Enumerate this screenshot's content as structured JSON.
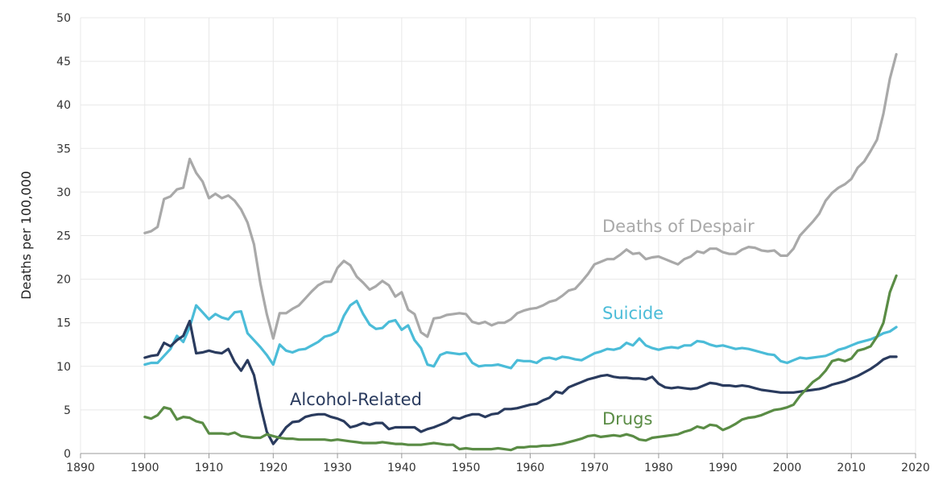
{
  "chart_data": {
    "type": "line",
    "title": "",
    "xlabel": "",
    "ylabel": "Deaths per 100,000",
    "xlim": [
      1890,
      2020
    ],
    "ylim": [
      0,
      50
    ],
    "xticks": [
      1890,
      1900,
      1910,
      1920,
      1930,
      1940,
      1950,
      1960,
      1970,
      1980,
      1990,
      2000,
      2010,
      2020
    ],
    "yticks": [
      0,
      5,
      10,
      15,
      20,
      25,
      30,
      35,
      40,
      45,
      50
    ],
    "grid": true,
    "legend": "inline labels",
    "x_start": 1900,
    "series": [
      {
        "name": "Deaths of Despair",
        "color": "#a9a9a9",
        "values": [
          25.3,
          25.5,
          26,
          29.2,
          29.5,
          30.3,
          30.5,
          33.8,
          32.2,
          31.2,
          29.3,
          29.8,
          29.3,
          29.6,
          29,
          28,
          26.5,
          24,
          19.5,
          16,
          13.2,
          16.1,
          16.1,
          16.6,
          17,
          17.8,
          18.6,
          19.3,
          19.7,
          19.7,
          21.3,
          22.1,
          21.6,
          20.3,
          19.6,
          18.8,
          19.2,
          19.8,
          19.3,
          18,
          18.5,
          16.5,
          16,
          13.9,
          13.4,
          15.5,
          15.6,
          15.9,
          16,
          16.1,
          16,
          15.1,
          14.9,
          15.1,
          14.7,
          15,
          15,
          15.4,
          16.1,
          16.4,
          16.6,
          16.7,
          17,
          17.4,
          17.6,
          18.1,
          18.7,
          18.9,
          19.7,
          20.6,
          21.7,
          22,
          22.3,
          22.3,
          22.8,
          23.4,
          22.9,
          23,
          22.3,
          22.5,
          22.6,
          22.3,
          22,
          21.7,
          22.3,
          22.6,
          23.2,
          23,
          23.5,
          23.5,
          23.1,
          22.9,
          22.9,
          23.4,
          23.7,
          23.6,
          23.3,
          23.2,
          23.3,
          22.7,
          22.7,
          23.5,
          25,
          25.8,
          26.6,
          27.5,
          29,
          29.9,
          30.5,
          30.9,
          31.5,
          32.8,
          33.5,
          34.7,
          36,
          39,
          43,
          45.8
        ]
      },
      {
        "name": "Suicide",
        "color": "#4bbcd8",
        "values": [
          10.2,
          10.4,
          10.4,
          11.2,
          12,
          13.5,
          12.8,
          14.5,
          17,
          16.2,
          15.4,
          16,
          15.6,
          15.4,
          16.2,
          16.3,
          13.8,
          13,
          12.2,
          11.3,
          10.2,
          12.5,
          11.8,
          11.6,
          11.9,
          12,
          12.4,
          12.8,
          13.4,
          13.6,
          14,
          15.8,
          17,
          17.5,
          16,
          14.8,
          14.3,
          14.4,
          15.1,
          15.3,
          14.2,
          14.7,
          13,
          12.1,
          10.2,
          10,
          11.3,
          11.6,
          11.5,
          11.4,
          11.5,
          10.4,
          10,
          10.1,
          10.1,
          10.2,
          10,
          9.8,
          10.7,
          10.6,
          10.6,
          10.4,
          10.9,
          11,
          10.8,
          11.1,
          11,
          10.8,
          10.7,
          11.1,
          11.5,
          11.7,
          12,
          11.9,
          12.1,
          12.7,
          12.4,
          13.2,
          12.4,
          12.1,
          11.9,
          12.1,
          12.2,
          12.1,
          12.4,
          12.4,
          12.9,
          12.8,
          12.5,
          12.3,
          12.4,
          12.2,
          12,
          12.1,
          12,
          11.8,
          11.6,
          11.4,
          11.3,
          10.6,
          10.4,
          10.7,
          11,
          10.9,
          11,
          11.1,
          11.2,
          11.5,
          11.9,
          12.1,
          12.4,
          12.7,
          12.9,
          13.1,
          13.4,
          13.8,
          14,
          14.5
        ]
      },
      {
        "name": "Alcohol-Related",
        "color": "#2a3b5e",
        "values": [
          11,
          11.2,
          11.3,
          12.7,
          12.3,
          13,
          13.5,
          15.2,
          11.5,
          11.6,
          11.8,
          11.6,
          11.5,
          12,
          10.5,
          9.5,
          10.7,
          9,
          5.5,
          2.5,
          1.1,
          2,
          3,
          3.6,
          3.7,
          4.2,
          4.4,
          4.5,
          4.5,
          4.2,
          4,
          3.7,
          3,
          3.2,
          3.5,
          3.3,
          3.5,
          3.5,
          2.8,
          3,
          3,
          3,
          3,
          2.5,
          2.8,
          3,
          3.3,
          3.6,
          4.1,
          4,
          4.3,
          4.5,
          4.5,
          4.2,
          4.5,
          4.6,
          5.1,
          5.1,
          5.2,
          5.4,
          5.6,
          5.7,
          6.1,
          6.4,
          7.1,
          6.9,
          7.6,
          7.9,
          8.2,
          8.5,
          8.7,
          8.9,
          9,
          8.8,
          8.7,
          8.7,
          8.6,
          8.6,
          8.5,
          8.8,
          8,
          7.6,
          7.5,
          7.6,
          7.5,
          7.4,
          7.5,
          7.8,
          8.1,
          8,
          7.8,
          7.8,
          7.7,
          7.8,
          7.7,
          7.5,
          7.3,
          7.2,
          7.1,
          7,
          7,
          7,
          7.1,
          7.2,
          7.3,
          7.4,
          7.6,
          7.9,
          8.1,
          8.3,
          8.6,
          8.9,
          9.3,
          9.7,
          10.2,
          10.8,
          11.1,
          11.1
        ]
      },
      {
        "name": "Drugs",
        "color": "#5a8c45",
        "values": [
          4.2,
          4,
          4.4,
          5.3,
          5.1,
          3.9,
          4.2,
          4.1,
          3.7,
          3.5,
          2.3,
          2.3,
          2.3,
          2.2,
          2.4,
          2,
          1.9,
          1.8,
          1.8,
          2.2,
          2,
          1.8,
          1.7,
          1.7,
          1.6,
          1.6,
          1.6,
          1.6,
          1.6,
          1.5,
          1.6,
          1.5,
          1.4,
          1.3,
          1.2,
          1.2,
          1.2,
          1.3,
          1.2,
          1.1,
          1.1,
          1,
          1,
          1,
          1.1,
          1.2,
          1.1,
          1,
          1,
          0.5,
          0.6,
          0.5,
          0.5,
          0.5,
          0.5,
          0.6,
          0.5,
          0.4,
          0.7,
          0.7,
          0.8,
          0.8,
          0.9,
          0.9,
          1,
          1.1,
          1.3,
          1.5,
          1.7,
          2,
          2.1,
          1.9,
          2,
          2.1,
          2,
          2.2,
          2,
          1.6,
          1.5,
          1.8,
          1.9,
          2,
          2.1,
          2.2,
          2.5,
          2.7,
          3.1,
          2.9,
          3.3,
          3.2,
          2.7,
          3,
          3.4,
          3.9,
          4.1,
          4.2,
          4.4,
          4.7,
          5,
          5.1,
          5.3,
          5.6,
          6.6,
          7.4,
          8.2,
          8.7,
          9.5,
          10.6,
          10.8,
          10.6,
          10.9,
          11.8,
          12,
          12.3,
          13.4,
          15,
          18.5,
          20.4
        ]
      }
    ]
  }
}
